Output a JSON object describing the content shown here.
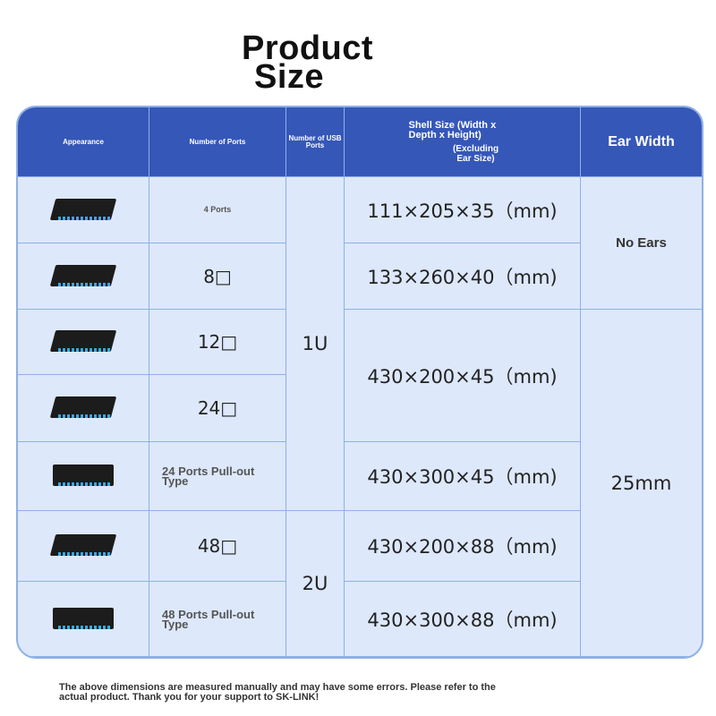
{
  "title": {
    "line1": "Product",
    "line2": "Size"
  },
  "headers": {
    "appearance": "Appearance",
    "ports": "Number of Ports",
    "usb": "Number of USB Ports",
    "shell": "Shell Size (Width x Depth x Height)",
    "shell_note": "(Excluding Ear Size)",
    "ear": "Ear Width"
  },
  "rows": [
    {
      "ports": "4 Ports"
    },
    {
      "ports": "8□"
    },
    {
      "ports": "12□"
    },
    {
      "ports": "24□"
    },
    {
      "ports": "24 Ports Pull-out Type"
    },
    {
      "ports": "48□"
    },
    {
      "ports": "48 Ports Pull-out Type"
    }
  ],
  "usb": [
    "1U",
    "2U"
  ],
  "sizes": [
    "111×205×35（mm)",
    "133×260×40（mm)",
    "430×200×45（mm)",
    "430×300×45（mm)",
    "430×200×88（mm)",
    "430×300×88（mm)"
  ],
  "ear": [
    "No Ears",
    "25mm"
  ],
  "note": "The above dimensions are measured manually and may have some errors. Please refer to the actual product. Thank you for your support to SK-LINK!",
  "colors": {
    "header": "#3557b8",
    "cell": "#dde8fb",
    "border": "#8fb0e6"
  }
}
